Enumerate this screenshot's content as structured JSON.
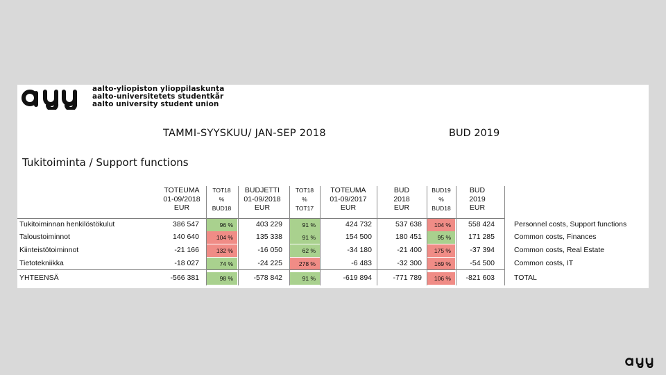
{
  "logo": {
    "wordmark": "ayy",
    "lines": [
      "aalto-yliopiston ylioppilaskunta",
      "aalto-universitetets studentkår",
      "aalto university student union"
    ]
  },
  "heading_main": "TAMMI-SYYSKUU/ JAN-SEP 2018",
  "heading_bud": "BUD 2019",
  "section_title": "Tukitoiminta / Support functions",
  "columns": [
    {
      "lines": [
        "TOTEUMA",
        "01-09/2018",
        "EUR"
      ],
      "small": false
    },
    {
      "lines": [
        "TOT18",
        "%",
        "BUD18"
      ],
      "small": true
    },
    {
      "lines": [
        "BUDJETTI",
        "01-09/2018",
        "EUR"
      ],
      "small": false
    },
    {
      "lines": [
        "TOT18",
        "%",
        "TOT17"
      ],
      "small": true
    },
    {
      "lines": [
        "TOTEUMA",
        "01-09/2017",
        "EUR"
      ],
      "small": false
    },
    {
      "lines": [
        "BUD",
        "2018",
        "EUR"
      ],
      "small": false
    },
    {
      "lines": [
        "BUD19",
        "%",
        "BUD18"
      ],
      "small": true
    },
    {
      "lines": [
        "BUD",
        "2019",
        "EUR"
      ],
      "small": false
    }
  ],
  "rows": [
    {
      "label": "Tukitoiminnan henkilöstökulut",
      "tot18": "386 547",
      "pct_bud": "96 %",
      "budjetti": "403 229",
      "pct_tot": "91 %",
      "tot17": "424 732",
      "bud18": "537 638",
      "pct_bud19": "104 %",
      "bud19": "558 424",
      "en": "Personnel costs, Support functions"
    },
    {
      "label": "Taloustoiminnot",
      "tot18": "140 640",
      "pct_bud": "104 %",
      "budjetti": "135 338",
      "pct_tot": "91 %",
      "tot17": "154 500",
      "bud18": "180 451",
      "pct_bud19": "95 %",
      "bud19": "171 285",
      "en": "Common costs, Finances"
    },
    {
      "label": "Kiinteistötoiminnot",
      "tot18": "-21 166",
      "pct_bud": "132 %",
      "budjetti": "-16 050",
      "pct_tot": "62 %",
      "tot17": "-34 180",
      "bud18": "-21 400",
      "pct_bud19": "175 %",
      "bud19": "-37 394",
      "en": "Common costs, Real Estate"
    },
    {
      "label": "Tietotekniikka",
      "tot18": "-18 027",
      "pct_bud": "74 %",
      "budjetti": "-24 225",
      "pct_tot": "278 %",
      "tot17": "-6 483",
      "bud18": "-32 300",
      "pct_bud19": "169 %",
      "bud19": "-54 500",
      "en": "Common costs, IT"
    }
  ],
  "total": {
    "label": "YHTEENSÄ",
    "tot18": "-566 381",
    "pct_bud": "98 %",
    "budjetti": "-578 842",
    "pct_tot": "91 %",
    "tot17": "-619 894",
    "bud18": "-771 789",
    "pct_bud19": "106 %",
    "bud19": "-821 603",
    "en": "TOTAL"
  },
  "colors": {
    "green": "#a9d18e",
    "red": "#f08c86"
  }
}
